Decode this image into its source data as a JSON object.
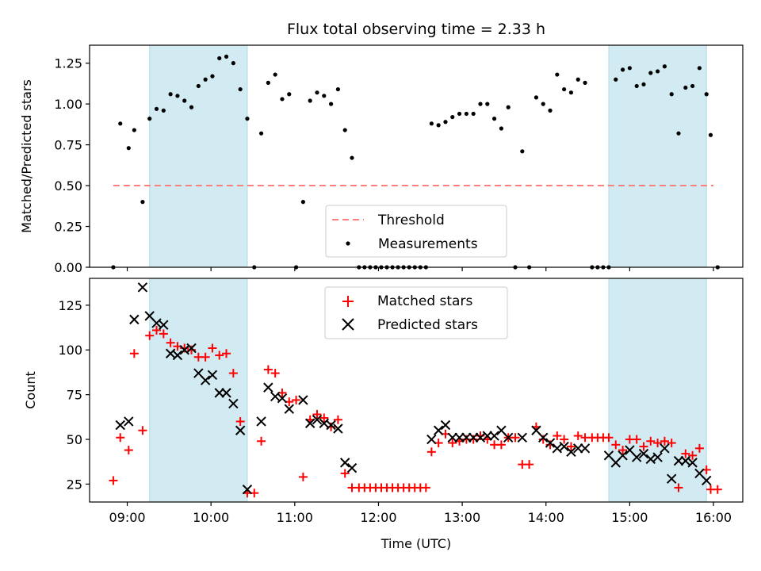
{
  "figure": {
    "title": "Flux total observing time = 2.33 h",
    "xlabel": "Time (UTC)",
    "x_ticks": [
      "09:00",
      "10:00",
      "11:00",
      "12:00",
      "13:00",
      "14:00",
      "15:00",
      "16:00"
    ]
  },
  "colors": {
    "shade": "#add8e6",
    "threshold": "#ff7f7f",
    "matched": "#ff0000",
    "predicted": "#000000",
    "measurements": "#000000"
  },
  "chart_data": [
    {
      "type": "scatter",
      "ylabel": "Matched/Predicted stars",
      "xlim": [
        "08:33",
        "16:21"
      ],
      "ylim": [
        0,
        1.36
      ],
      "y_ticks": [
        "0.00",
        "0.25",
        "0.50",
        "0.75",
        "1.00",
        "1.25"
      ],
      "shaded_intervals": [
        [
          "09:16",
          "10:26"
        ],
        [
          "14:45",
          "15:55"
        ]
      ],
      "threshold": {
        "label": "Threshold",
        "value": 0.5,
        "x_range": [
          "08:50",
          "16:00"
        ]
      },
      "legend": {
        "position": "lower-center",
        "entries": [
          "Threshold",
          "Measurements"
        ]
      },
      "series": [
        {
          "name": "Measurements",
          "points": [
            [
              "08:50",
              0.0
            ],
            [
              "08:55",
              0.88
            ],
            [
              "09:01",
              0.73
            ],
            [
              "09:05",
              0.84
            ],
            [
              "09:11",
              0.4
            ],
            [
              "09:16",
              0.91
            ],
            [
              "09:21",
              0.97
            ],
            [
              "09:26",
              0.96
            ],
            [
              "09:31",
              1.06
            ],
            [
              "09:36",
              1.05
            ],
            [
              "09:41",
              1.02
            ],
            [
              "09:46",
              0.98
            ],
            [
              "09:51",
              1.11
            ],
            [
              "09:56",
              1.15
            ],
            [
              "10:01",
              1.17
            ],
            [
              "10:06",
              1.28
            ],
            [
              "10:11",
              1.29
            ],
            [
              "10:16",
              1.25
            ],
            [
              "10:21",
              1.09
            ],
            [
              "10:26",
              0.91
            ],
            [
              "10:31",
              0.0
            ],
            [
              "10:36",
              0.82
            ],
            [
              "10:41",
              1.13
            ],
            [
              "10:46",
              1.18
            ],
            [
              "10:51",
              1.03
            ],
            [
              "10:56",
              1.06
            ],
            [
              "11:01",
              0.0
            ],
            [
              "11:06",
              0.4
            ],
            [
              "11:11",
              1.02
            ],
            [
              "11:16",
              1.07
            ],
            [
              "11:21",
              1.05
            ],
            [
              "11:26",
              1.0
            ],
            [
              "11:31",
              1.09
            ],
            [
              "11:36",
              0.84
            ],
            [
              "11:41",
              0.67
            ],
            [
              "11:46",
              0.0
            ],
            [
              "11:50",
              0.0
            ],
            [
              "11:54",
              0.0
            ],
            [
              "11:58",
              0.0
            ],
            [
              "12:02",
              0.0
            ],
            [
              "12:06",
              0.0
            ],
            [
              "12:10",
              0.0
            ],
            [
              "12:14",
              0.0
            ],
            [
              "12:18",
              0.0
            ],
            [
              "12:22",
              0.0
            ],
            [
              "12:26",
              0.0
            ],
            [
              "12:30",
              0.0
            ],
            [
              "12:34",
              0.0
            ],
            [
              "12:38",
              0.88
            ],
            [
              "12:43",
              0.87
            ],
            [
              "12:48",
              0.89
            ],
            [
              "12:53",
              0.92
            ],
            [
              "12:58",
              0.94
            ],
            [
              "13:03",
              0.94
            ],
            [
              "13:08",
              0.94
            ],
            [
              "13:13",
              1.0
            ],
            [
              "13:18",
              1.0
            ],
            [
              "13:23",
              0.91
            ],
            [
              "13:28",
              0.85
            ],
            [
              "13:33",
              0.98
            ],
            [
              "13:38",
              0.0
            ],
            [
              "13:43",
              0.71
            ],
            [
              "13:48",
              0.0
            ],
            [
              "13:53",
              1.04
            ],
            [
              "13:58",
              1.0
            ],
            [
              "14:03",
              0.96
            ],
            [
              "14:08",
              1.18
            ],
            [
              "14:13",
              1.09
            ],
            [
              "14:18",
              1.07
            ],
            [
              "14:23",
              1.15
            ],
            [
              "14:28",
              1.13
            ],
            [
              "14:33",
              0.0
            ],
            [
              "14:37",
              0.0
            ],
            [
              "14:41",
              0.0
            ],
            [
              "14:45",
              0.0
            ],
            [
              "14:50",
              1.15
            ],
            [
              "14:55",
              1.21
            ],
            [
              "15:00",
              1.22
            ],
            [
              "15:05",
              1.11
            ],
            [
              "15:10",
              1.12
            ],
            [
              "15:15",
              1.19
            ],
            [
              "15:20",
              1.2
            ],
            [
              "15:25",
              1.23
            ],
            [
              "15:30",
              1.06
            ],
            [
              "15:35",
              0.82
            ],
            [
              "15:40",
              1.1
            ],
            [
              "15:45",
              1.11
            ],
            [
              "15:50",
              1.22
            ],
            [
              "15:55",
              1.06
            ],
            [
              "15:58",
              0.81
            ],
            [
              "16:03",
              0.0
            ]
          ]
        }
      ]
    },
    {
      "type": "scatter",
      "ylabel": "Count",
      "xlim": [
        "08:33",
        "16:21"
      ],
      "ylim": [
        15,
        140
      ],
      "y_ticks": [
        "25",
        "50",
        "75",
        "100",
        "125"
      ],
      "shaded_intervals": [
        [
          "09:16",
          "10:26"
        ],
        [
          "14:45",
          "15:55"
        ]
      ],
      "legend": {
        "position": "top-center",
        "entries": [
          "Matched stars",
          "Predicted stars"
        ]
      },
      "series": [
        {
          "name": "Matched stars",
          "marker": "+",
          "points": [
            [
              "08:50",
              27
            ],
            [
              "08:55",
              51
            ],
            [
              "09:01",
              44
            ],
            [
              "09:05",
              98
            ],
            [
              "09:11",
              55
            ],
            [
              "09:16",
              108
            ],
            [
              "09:21",
              111
            ],
            [
              "09:26",
              109
            ],
            [
              "09:31",
              104
            ],
            [
              "09:36",
              102
            ],
            [
              "09:41",
              101
            ],
            [
              "09:46",
              100
            ],
            [
              "09:51",
              96
            ],
            [
              "09:56",
              96
            ],
            [
              "10:01",
              101
            ],
            [
              "10:06",
              97
            ],
            [
              "10:11",
              98
            ],
            [
              "10:16",
              87
            ],
            [
              "10:21",
              60
            ],
            [
              "10:26",
              20
            ],
            [
              "10:31",
              20
            ],
            [
              "10:36",
              49
            ],
            [
              "10:41",
              89
            ],
            [
              "10:46",
              87
            ],
            [
              "10:51",
              76
            ],
            [
              "10:56",
              71
            ],
            [
              "11:01",
              72
            ],
            [
              "11:06",
              29
            ],
            [
              "11:11",
              61
            ],
            [
              "11:16",
              64
            ],
            [
              "11:21",
              62
            ],
            [
              "11:26",
              57
            ],
            [
              "11:31",
              61
            ],
            [
              "11:36",
              31
            ],
            [
              "11:41",
              23
            ],
            [
              "11:46",
              23
            ],
            [
              "11:50",
              23
            ],
            [
              "11:54",
              23
            ],
            [
              "11:58",
              23
            ],
            [
              "12:02",
              23
            ],
            [
              "12:06",
              23
            ],
            [
              "12:10",
              23
            ],
            [
              "12:14",
              23
            ],
            [
              "12:18",
              23
            ],
            [
              "12:22",
              23
            ],
            [
              "12:26",
              23
            ],
            [
              "12:30",
              23
            ],
            [
              "12:34",
              23
            ],
            [
              "12:38",
              43
            ],
            [
              "12:43",
              48
            ],
            [
              "12:48",
              53
            ],
            [
              "12:53",
              48
            ],
            [
              "12:58",
              49
            ],
            [
              "13:03",
              50
            ],
            [
              "13:08",
              50
            ],
            [
              "13:13",
              52
            ],
            [
              "13:18",
              50
            ],
            [
              "13:23",
              47
            ],
            [
              "13:28",
              47
            ],
            [
              "13:33",
              51
            ],
            [
              "13:38",
              51
            ],
            [
              "13:43",
              36
            ],
            [
              "13:48",
              36
            ],
            [
              "13:53",
              57
            ],
            [
              "13:58",
              50
            ],
            [
              "14:03",
              47
            ],
            [
              "14:08",
              52
            ],
            [
              "14:13",
              50
            ],
            [
              "14:18",
              46
            ],
            [
              "14:23",
              52
            ],
            [
              "14:28",
              51
            ],
            [
              "14:33",
              51
            ],
            [
              "14:37",
              51
            ],
            [
              "14:41",
              51
            ],
            [
              "14:45",
              51
            ],
            [
              "14:50",
              47
            ],
            [
              "14:55",
              44
            ],
            [
              "15:00",
              50
            ],
            [
              "15:05",
              50
            ],
            [
              "15:10",
              46
            ],
            [
              "15:15",
              49
            ],
            [
              "15:20",
              48
            ],
            [
              "15:25",
              49
            ],
            [
              "15:30",
              48
            ],
            [
              "15:35",
              23
            ],
            [
              "15:40",
              42
            ],
            [
              "15:45",
              41
            ],
            [
              "15:50",
              45
            ],
            [
              "15:55",
              33
            ],
            [
              "15:58",
              22
            ],
            [
              "16:03",
              22
            ]
          ]
        },
        {
          "name": "Predicted stars",
          "marker": "x",
          "points": [
            [
              "08:55",
              58
            ],
            [
              "09:01",
              60
            ],
            [
              "09:05",
              117
            ],
            [
              "09:11",
              135
            ],
            [
              "09:16",
              119
            ],
            [
              "09:21",
              115
            ],
            [
              "09:26",
              114
            ],
            [
              "09:31",
              98
            ],
            [
              "09:36",
              97
            ],
            [
              "09:41",
              100
            ],
            [
              "09:46",
              101
            ],
            [
              "09:51",
              87
            ],
            [
              "09:56",
              83
            ],
            [
              "10:01",
              86
            ],
            [
              "10:06",
              76
            ],
            [
              "10:11",
              76
            ],
            [
              "10:16",
              70
            ],
            [
              "10:21",
              55
            ],
            [
              "10:26",
              22
            ],
            [
              "10:36",
              60
            ],
            [
              "10:41",
              79
            ],
            [
              "10:46",
              74
            ],
            [
              "10:51",
              73
            ],
            [
              "10:56",
              67
            ],
            [
              "11:06",
              72
            ],
            [
              "11:11",
              59
            ],
            [
              "11:16",
              61
            ],
            [
              "11:21",
              59
            ],
            [
              "11:26",
              58
            ],
            [
              "11:31",
              56
            ],
            [
              "11:36",
              37
            ],
            [
              "11:41",
              34
            ],
            [
              "12:38",
              50
            ],
            [
              "12:43",
              55
            ],
            [
              "12:48",
              58
            ],
            [
              "12:53",
              51
            ],
            [
              "12:58",
              51
            ],
            [
              "13:03",
              51
            ],
            [
              "13:08",
              51
            ],
            [
              "13:13",
              51
            ],
            [
              "13:18",
              52
            ],
            [
              "13:23",
              52
            ],
            [
              "13:28",
              55
            ],
            [
              "13:33",
              51
            ],
            [
              "13:43",
              51
            ],
            [
              "13:53",
              55
            ],
            [
              "13:58",
              51
            ],
            [
              "14:03",
              48
            ],
            [
              "14:08",
              45
            ],
            [
              "14:13",
              46
            ],
            [
              "14:18",
              43
            ],
            [
              "14:23",
              45
            ],
            [
              "14:28",
              45
            ],
            [
              "14:45",
              41
            ],
            [
              "14:50",
              37
            ],
            [
              "14:55",
              41
            ],
            [
              "15:00",
              44
            ],
            [
              "15:05",
              40
            ],
            [
              "15:10",
              42
            ],
            [
              "15:15",
              39
            ],
            [
              "15:20",
              40
            ],
            [
              "15:25",
              45
            ],
            [
              "15:30",
              28
            ],
            [
              "15:35",
              38
            ],
            [
              "15:40",
              38
            ],
            [
              "15:45",
              37
            ],
            [
              "15:50",
              31
            ],
            [
              "15:55",
              27
            ]
          ]
        }
      ]
    }
  ]
}
